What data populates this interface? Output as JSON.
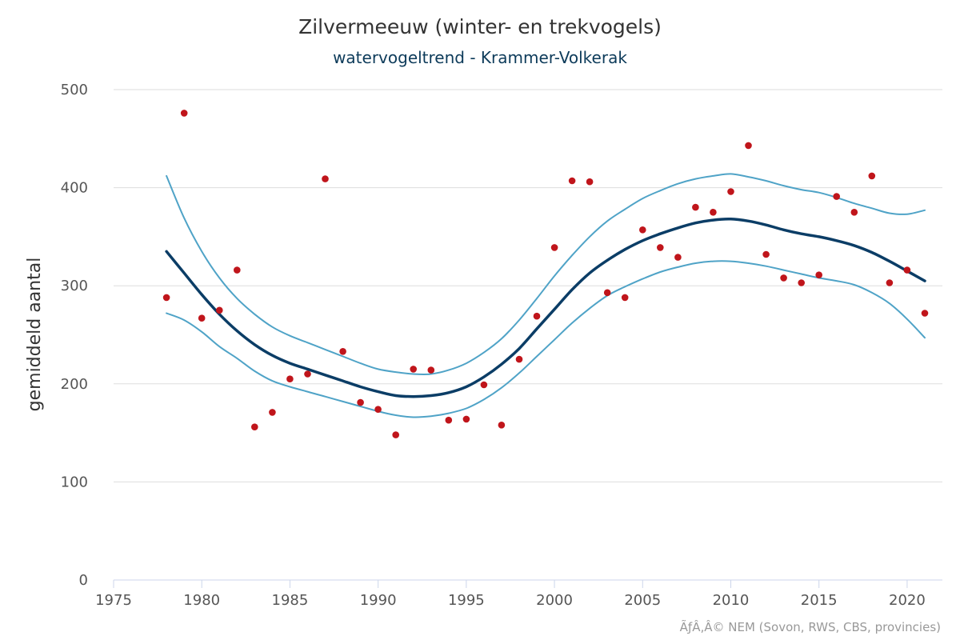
{
  "chart_data": {
    "type": "line",
    "title": "Zilvermeeuw (winter- en trekvogels)",
    "subtitle": "watervogeltrend - Krammer-Volkerak",
    "ylabel": "gemiddeld aantal",
    "xlabel": "",
    "xlim": [
      1975,
      2022
    ],
    "ylim": [
      0,
      500
    ],
    "xticks": [
      1975,
      1980,
      1985,
      1990,
      1995,
      2000,
      2005,
      2010,
      2015,
      2020
    ],
    "yticks": [
      0,
      100,
      200,
      300,
      400,
      500
    ],
    "grid": true,
    "credit": "ÃƒÂ‚Â© NEM (Sovon, RWS, CBS, provincies)",
    "colors": {
      "points": "#c0151b",
      "trend": "#0b3d66",
      "band": "#4fa3c7"
    },
    "series": [
      {
        "name": "waarnemingen",
        "kind": "scatter",
        "x": [
          1978,
          1979,
          1980,
          1981,
          1982,
          1983,
          1984,
          1985,
          1986,
          1987,
          1988,
          1989,
          1990,
          1991,
          1992,
          1993,
          1994,
          1995,
          1996,
          1997,
          1998,
          1999,
          2000,
          2001,
          2002,
          2003,
          2004,
          2005,
          2006,
          2007,
          2008,
          2009,
          2010,
          2011,
          2012,
          2013,
          2014,
          2015,
          2016,
          2017,
          2018,
          2019,
          2020,
          2021
        ],
        "values": [
          288,
          476,
          267,
          275,
          316,
          156,
          171,
          205,
          210,
          409,
          233,
          181,
          174,
          148,
          215,
          214,
          163,
          164,
          199,
          158,
          225,
          269,
          339,
          407,
          406,
          293,
          288,
          357,
          339,
          329,
          380,
          375,
          396,
          443,
          332,
          308,
          303,
          311,
          391,
          375,
          412,
          303,
          316,
          272
        ]
      },
      {
        "name": "trend",
        "kind": "line",
        "x": [
          1978,
          1979,
          1980,
          1981,
          1982,
          1983,
          1984,
          1985,
          1986,
          1987,
          1988,
          1989,
          1990,
          1991,
          1992,
          1993,
          1994,
          1995,
          1996,
          1997,
          1998,
          1999,
          2000,
          2001,
          2002,
          2003,
          2004,
          2005,
          2006,
          2007,
          2008,
          2009,
          2010,
          2011,
          2012,
          2013,
          2014,
          2015,
          2016,
          2017,
          2018,
          2019,
          2020,
          2021
        ],
        "values": [
          335,
          313,
          291,
          271,
          254,
          240,
          229,
          221,
          215,
          209,
          203,
          197,
          192,
          188,
          187,
          188,
          191,
          197,
          207,
          220,
          236,
          256,
          276,
          296,
          313,
          326,
          337,
          346,
          353,
          359,
          364,
          367,
          368,
          366,
          362,
          357,
          353,
          350,
          346,
          341,
          334,
          325,
          315,
          305
        ]
      },
      {
        "name": "bovengrens",
        "kind": "line",
        "x": [
          1978,
          1979,
          1980,
          1981,
          1982,
          1983,
          1984,
          1985,
          1986,
          1987,
          1988,
          1989,
          1990,
          1991,
          1992,
          1993,
          1994,
          1995,
          1996,
          1997,
          1998,
          1999,
          2000,
          2001,
          2002,
          2003,
          2004,
          2005,
          2006,
          2007,
          2008,
          2009,
          2010,
          2011,
          2012,
          2013,
          2014,
          2015,
          2016,
          2017,
          2018,
          2019,
          2020,
          2021
        ],
        "values": [
          412,
          369,
          335,
          308,
          287,
          271,
          258,
          249,
          242,
          235,
          228,
          221,
          215,
          212,
          210,
          210,
          214,
          221,
          232,
          246,
          265,
          287,
          310,
          331,
          350,
          366,
          378,
          389,
          397,
          404,
          409,
          412,
          414,
          411,
          407,
          402,
          398,
          395,
          390,
          384,
          379,
          374,
          373,
          377
        ]
      },
      {
        "name": "ondergrens",
        "kind": "line",
        "x": [
          1978,
          1979,
          1980,
          1981,
          1982,
          1983,
          1984,
          1985,
          1986,
          1987,
          1988,
          1989,
          1990,
          1991,
          1992,
          1993,
          1994,
          1995,
          1996,
          1997,
          1998,
          1999,
          2000,
          2001,
          2002,
          2003,
          2004,
          2005,
          2006,
          2007,
          2008,
          2009,
          2010,
          2011,
          2012,
          2013,
          2014,
          2015,
          2016,
          2017,
          2018,
          2019,
          2020,
          2021
        ],
        "values": [
          272,
          265,
          253,
          238,
          226,
          213,
          203,
          197,
          192,
          187,
          182,
          177,
          172,
          168,
          166,
          167,
          170,
          175,
          184,
          196,
          211,
          228,
          245,
          262,
          277,
          290,
          299,
          307,
          314,
          319,
          323,
          325,
          325,
          323,
          320,
          316,
          312,
          308,
          305,
          301,
          293,
          282,
          266,
          247
        ]
      }
    ]
  }
}
